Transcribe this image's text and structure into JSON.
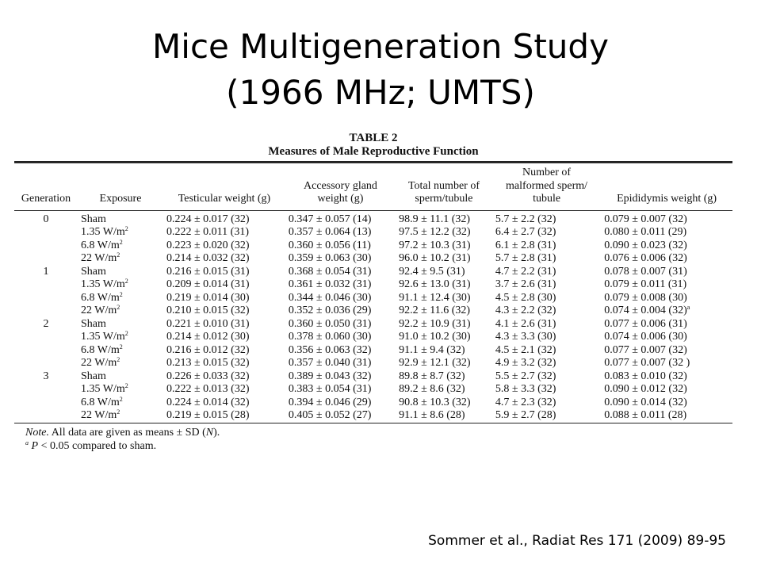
{
  "slide": {
    "title_line1": "Mice Multigeneration Study",
    "title_line2": "(1966 MHz; UMTS)",
    "citation": "Sommer et al., Radiat Res 171 (2009) 89-95"
  },
  "table": {
    "number": "TABLE 2",
    "caption": "Measures of Male Reproductive Function",
    "headers": {
      "generation": "Generation",
      "exposure": "Exposure",
      "testicular": "Testicular weight (g)",
      "accessory_line1": "Accessory gland",
      "accessory_line2": "weight (g)",
      "sperm_line1": "Total number of",
      "sperm_line2": "sperm/tubule",
      "malformed_line1": "Number of",
      "malformed_line2": "malformed sperm/",
      "malformed_line3": "tubule",
      "epididymis": "Epididymis weight (g)"
    },
    "rows": [
      {
        "gen": "0",
        "exposure": "Sham",
        "exp_sup": "",
        "testicular": "0.224 ± 0.017 (32)",
        "accessory": "0.347 ± 0.057 (14)",
        "sperm": "98.9 ± 11.1 (32)",
        "malformed": "5.7 ± 2.2 (32)",
        "epididymis": "0.079 ± 0.007 (32)",
        "epi_sup": ""
      },
      {
        "gen": "",
        "exposure": "1.35 W/m",
        "exp_sup": "2",
        "testicular": "0.222 ± 0.011 (31)",
        "accessory": "0.357 ± 0.064 (13)",
        "sperm": "97.5 ± 12.2 (32)",
        "malformed": "6.4 ± 2.7 (32)",
        "epididymis": "0.080 ± 0.011 (29)",
        "epi_sup": ""
      },
      {
        "gen": "",
        "exposure": "6.8 W/m",
        "exp_sup": "2",
        "testicular": "0.223 ± 0.020 (32)",
        "accessory": "0.360 ± 0.056 (11)",
        "sperm": "97.2 ± 10.3 (31)",
        "malformed": "6.1 ± 2.8 (31)",
        "epididymis": "0.090 ± 0.023 (32)",
        "epi_sup": ""
      },
      {
        "gen": "",
        "exposure": "22 W/m",
        "exp_sup": "2",
        "testicular": "0.214 ± 0.032 (32)",
        "accessory": "0.359 ± 0.063 (30)",
        "sperm": "96.0 ± 10.2 (31)",
        "malformed": "5.7 ± 2.8 (31)",
        "epididymis": "0.076 ± 0.006 (32)",
        "epi_sup": ""
      },
      {
        "gen": "1",
        "exposure": "Sham",
        "exp_sup": "",
        "testicular": "0.216 ± 0.015 (31)",
        "accessory": "0.368 ± 0.054 (31)",
        "sperm": "92.4 ± 9.5 (31)",
        "malformed": "4.7 ± 2.2 (31)",
        "epididymis": "0.078 ± 0.007 (31)",
        "epi_sup": ""
      },
      {
        "gen": "",
        "exposure": "1.35 W/m",
        "exp_sup": "2",
        "testicular": "0.209 ± 0.014 (31)",
        "accessory": "0.361 ± 0.032 (31)",
        "sperm": "92.6 ± 13.0 (31)",
        "malformed": "3.7 ± 2.6 (31)",
        "epididymis": "0.079 ± 0.011 (31)",
        "epi_sup": ""
      },
      {
        "gen": "",
        "exposure": "6.8 W/m",
        "exp_sup": "2",
        "testicular": "0.219 ± 0.014 (30)",
        "accessory": "0.344 ± 0.046 (30)",
        "sperm": "91.1 ± 12.4 (30)",
        "malformed": "4.5 ± 2.8 (30)",
        "epididymis": "0.079 ± 0.008 (30)",
        "epi_sup": ""
      },
      {
        "gen": "",
        "exposure": "22 W/m",
        "exp_sup": "2",
        "testicular": "0.210 ± 0.015 (32)",
        "accessory": "0.352 ± 0.036 (29)",
        "sperm": "92.2 ± 11.6 (32)",
        "malformed": "4.3 ± 2.2 (32)",
        "epididymis": "0.074 ± 0.004 (32)",
        "epi_sup": "a"
      },
      {
        "gen": "2",
        "exposure": "Sham",
        "exp_sup": "",
        "testicular": "0.221 ± 0.010 (31)",
        "accessory": "0.360 ± 0.050 (31)",
        "sperm": "92.2 ± 10.9 (31)",
        "malformed": "4.1 ± 2.6 (31)",
        "epididymis": "0.077 ± 0.006 (31)",
        "epi_sup": ""
      },
      {
        "gen": "",
        "exposure": "1.35 W/m",
        "exp_sup": "2",
        "testicular": "0.214 ± 0.012 (30)",
        "accessory": "0.378 ± 0.060 (30)",
        "sperm": "91.0 ± 10.2 (30)",
        "malformed": "4.3 ± 3.3 (30)",
        "epididymis": "0.074 ± 0.006 (30)",
        "epi_sup": ""
      },
      {
        "gen": "",
        "exposure": "6.8 W/m",
        "exp_sup": "2",
        "testicular": "0.216 ± 0.012 (32)",
        "accessory": "0.356 ± 0.063 (32)",
        "sperm": "91.1 ± 9.4 (32)",
        "malformed": "4.5 ± 2.1 (32)",
        "epididymis": "0.077 ± 0.007 (32)",
        "epi_sup": ""
      },
      {
        "gen": "",
        "exposure": "22 W/m",
        "exp_sup": "2",
        "testicular": "0.213 ± 0.015 (32)",
        "accessory": "0.357 ± 0.040 (31)",
        "sperm": "92.9 ± 12.1 (32)",
        "malformed": "4.9 ± 3.2 (32)",
        "epididymis": "0.077 ± 0.007 (32 )",
        "epi_sup": ""
      },
      {
        "gen": "3",
        "exposure": "Sham",
        "exp_sup": "",
        "testicular": "0.226 ± 0.033 (32)",
        "accessory": "0.389 ± 0.043 (32)",
        "sperm": "89.8 ± 8.7 (32)",
        "malformed": "5.5 ± 2.7 (32)",
        "epididymis": "0.083 ± 0.010 (32)",
        "epi_sup": ""
      },
      {
        "gen": "",
        "exposure": "1.35 W/m",
        "exp_sup": "2",
        "testicular": "0.222 ± 0.013 (32)",
        "accessory": "0.383 ± 0.054 (31)",
        "sperm": "89.2 ± 8.6 (32)",
        "malformed": "5.8 ± 3.3 (32)",
        "epididymis": "0.090 ± 0.012 (32)",
        "epi_sup": ""
      },
      {
        "gen": "",
        "exposure": "6.8 W/m",
        "exp_sup": "2",
        "testicular": "0.224 ± 0.014 (32)",
        "accessory": "0.394 ± 0.046 (29)",
        "sperm": "90.8 ± 10.3 (32)",
        "malformed": "4.7 ± 2.3 (32)",
        "epididymis": "0.090 ± 0.014 (32)",
        "epi_sup": ""
      },
      {
        "gen": "",
        "exposure": "22 W/m",
        "exp_sup": "2",
        "testicular": "0.219 ± 0.015 (28)",
        "accessory": "0.405 ± 0.052 (27)",
        "sperm": "91.1 ± 8.6 (28)",
        "malformed": "5.9 ± 2.7 (28)",
        "epididymis": "0.088 ± 0.011 (28)",
        "epi_sup": ""
      }
    ],
    "note_label": "Note.",
    "note_prefix": "All data are given as means ± SD (",
    "note_n": "N",
    "note_suffix": ").",
    "footnote_mark": "a",
    "footnote_p": "P",
    "footnote_text": " < 0.05 compared to sham."
  }
}
